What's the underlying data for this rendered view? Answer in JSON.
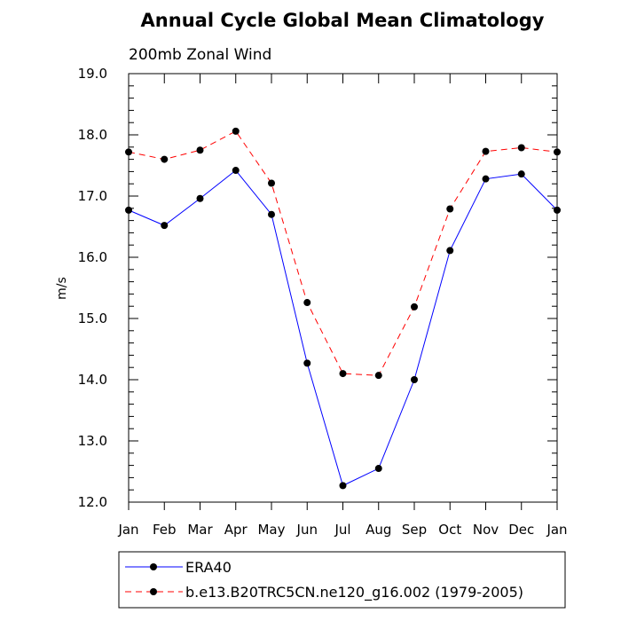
{
  "chart_data": {
    "type": "line",
    "title": "Annual Cycle Global Mean Climatology",
    "subtitle": "200mb Zonal Wind",
    "xlabel": "",
    "ylabel": "m/s",
    "categories": [
      "Jan",
      "Feb",
      "Mar",
      "Apr",
      "May",
      "Jun",
      "Jul",
      "Aug",
      "Sep",
      "Oct",
      "Nov",
      "Dec",
      "Jan"
    ],
    "ylim": [
      12.0,
      19.0
    ],
    "yticks": [
      "12.0",
      "13.0",
      "14.0",
      "15.0",
      "16.0",
      "17.0",
      "18.0",
      "19.0"
    ],
    "grid": false,
    "legend_position": "bottom",
    "series": [
      {
        "name": "ERA40",
        "color": "#0000ff",
        "line_style": "solid",
        "marker": "filled-circle",
        "values": [
          16.77,
          16.52,
          16.96,
          17.42,
          16.7,
          14.27,
          12.27,
          12.55,
          14.0,
          16.11,
          17.28,
          17.36,
          16.77
        ]
      },
      {
        "name": "b.e13.B20TRC5CN.ne120_g16.002 (1979-2005)",
        "color": "#ff0000",
        "line_style": "dashed",
        "marker": "filled-circle",
        "values": [
          17.72,
          17.6,
          17.75,
          18.06,
          17.21,
          15.26,
          14.1,
          14.07,
          15.19,
          16.79,
          17.73,
          17.79,
          17.72
        ]
      }
    ]
  }
}
